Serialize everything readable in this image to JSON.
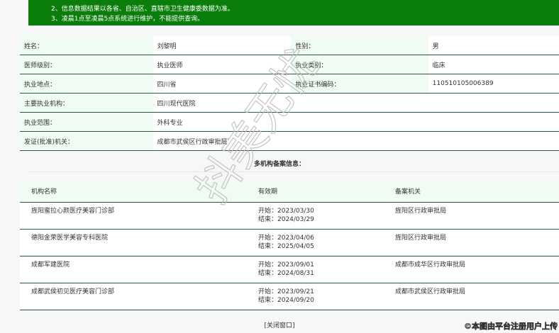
{
  "banner": {
    "notes": [
      "2、信息数据结果以各省、自治区、直辖市卫生健康委数据为准。",
      "3、凌晨1点至凌晨5点系统进行维护，不能提供查询。"
    ]
  },
  "info": {
    "rows": [
      [
        "姓名：",
        "刘黎明",
        "性别：",
        "男"
      ],
      [
        "医师级别：",
        "执业医师",
        "执业类别：",
        "临床"
      ],
      [
        "执业地点：",
        "四川省",
        "执业证书编码：",
        "110510105006389"
      ],
      [
        "主要执业机构：",
        "四川现代医院",
        "",
        ""
      ],
      [
        "执业范围：",
        "外科专业",
        "",
        ""
      ],
      [
        "发证(批准)机关：",
        "成都市武侯区行政审批局",
        "",
        ""
      ]
    ]
  },
  "multi": {
    "title": "多机构备案信息：",
    "headers": [
      "机构名称",
      "有效期",
      "备案机关"
    ],
    "rows": [
      {
        "name": "旌阳蜜拉心颜医疗美容门诊部",
        "start": "开始：2023/03/30",
        "end": "结束：2024/03/29",
        "authority": "旌阳区行政审批局"
      },
      {
        "name": "德阳金荣医学美容专科医院",
        "start": "开始：2023/04/06",
        "end": "结束：2025/04/05",
        "authority": "旌阳区行政审批局"
      },
      {
        "name": "成都军建医院",
        "start": "开始：2023/09/01",
        "end": "结束：2024/08/31",
        "authority": "成都市成华区行政审批局"
      },
      {
        "name": "成都武侯初见医疗美容门诊部",
        "start": "开始：2023/09/21",
        "end": "结束：2024/09/20",
        "authority": "成都市武侯区行政审批局"
      }
    ]
  },
  "close_label": "[关闭窗口]",
  "watermark": "抖美无忧",
  "credit": "©本图由平台注册用户上传",
  "colors": {
    "banner": "#0a7d0a",
    "label_bg": "#effbf3",
    "border": "#2d5a3d"
  }
}
